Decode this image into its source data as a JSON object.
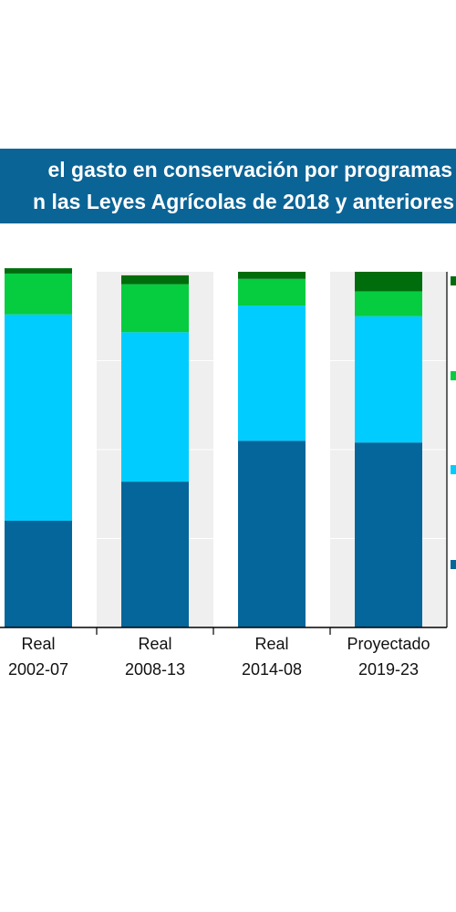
{
  "title": {
    "line1": "el gasto en conservación por programas",
    "line2": "n las Leyes Agrícolas de 2018 y anteriores"
  },
  "chart_data": {
    "type": "bar",
    "stacked": true,
    "categories": [
      [
        "Real",
        "2002-07"
      ],
      [
        "Real",
        "2008-13"
      ],
      [
        "Real",
        "2014-08"
      ],
      [
        "Proyectado",
        "2019-23"
      ]
    ],
    "series": [
      {
        "values": [
          0.3,
          0.41,
          0.525,
          0.52
        ],
        "color": "#04669a"
      },
      {
        "values": [
          0.58,
          0.42,
          0.38,
          0.355
        ],
        "color": "#00ccff"
      },
      {
        "values": [
          0.115,
          0.135,
          0.075,
          0.07
        ],
        "color": "#06cc40"
      },
      {
        "values": [
          0.015,
          0.025,
          0.02,
          0.055
        ],
        "color": "#006d0d"
      }
    ],
    "ylim": [
      0,
      1
    ],
    "grid": true,
    "legend": "right"
  }
}
